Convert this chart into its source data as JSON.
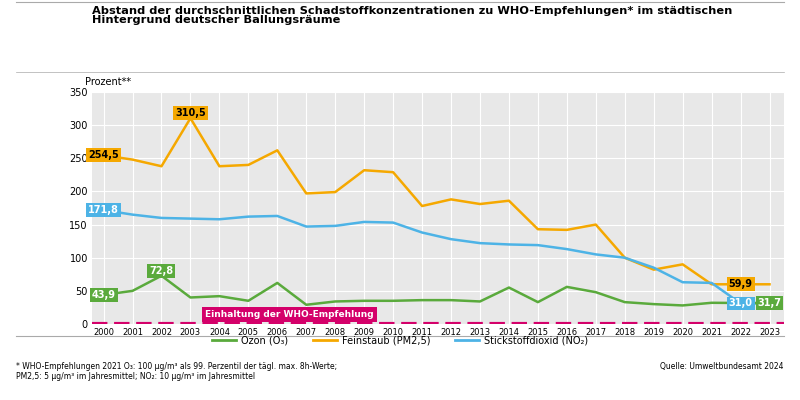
{
  "title_line1": "Abstand der durchschnittlichen Schadstoffkonzentrationen zu WHO-Empfehlungen* im städtischen",
  "title_line2": "Hintergrund deutscher Ballungsräume",
  "ylabel": "Prozent**",
  "years": [
    2000,
    2001,
    2002,
    2003,
    2004,
    2005,
    2006,
    2007,
    2008,
    2009,
    2010,
    2011,
    2012,
    2013,
    2014,
    2015,
    2016,
    2017,
    2018,
    2019,
    2020,
    2021,
    2022,
    2023
  ],
  "no2": [
    171.8,
    165.0,
    160.0,
    159.0,
    158.0,
    162.0,
    163.0,
    147.0,
    148.0,
    154.0,
    153.0,
    138.0,
    128.0,
    122.0,
    120.0,
    119.0,
    113.0,
    105.0,
    100.0,
    85.0,
    63.0,
    62.0,
    31.0,
    31.0
  ],
  "pm25": [
    254.5,
    248.0,
    238.0,
    310.5,
    238.0,
    240.0,
    262.0,
    197.0,
    199.0,
    232.0,
    229.0,
    178.0,
    188.0,
    181.0,
    186.0,
    143.0,
    142.0,
    150.0,
    100.0,
    82.0,
    90.0,
    59.9,
    59.9,
    59.9
  ],
  "ozon": [
    43.9,
    50.0,
    72.8,
    40.0,
    42.0,
    35.0,
    62.0,
    29.0,
    34.0,
    35.0,
    35.0,
    36.0,
    36.0,
    34.0,
    55.0,
    33.0,
    56.0,
    48.0,
    33.0,
    30.0,
    28.0,
    32.0,
    31.7,
    31.7
  ],
  "no2_color": "#4db3e6",
  "pm25_color": "#f5a800",
  "ozon_color": "#5aaa3c",
  "who_color": "#d4006a",
  "ylim": [
    0,
    350
  ],
  "yticks": [
    0,
    50,
    100,
    150,
    200,
    250,
    300,
    350
  ],
  "footnote1": "* WHO-Empfehlungen 2021 O₃: 100 μg/m³ als 99. Perzentil der tägl. max. 8h-Werte;",
  "footnote2": "PM2,5: 5 μg/m³ im Jahresmittel; NO₂: 10 μg/m³ im Jahresmittel",
  "source": "Quelle: Umweltbundesamt 2024",
  "legend_ozon": "Ozon (O₃)",
  "legend_pm25": "Feinstaub (PM2,5)",
  "legend_no2": "Stickstoffdioxid (NO₂)",
  "who_label": "Einhaltung der WHO-Empfehlung",
  "background_color": "#e8e8e8"
}
